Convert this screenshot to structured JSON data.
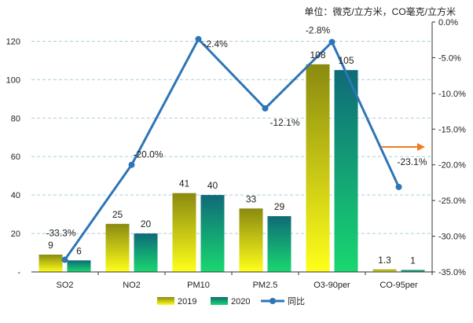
{
  "chart_data": {
    "type": "bar",
    "unit_note": "单位：微克/立方米，CO毫克/立方米",
    "categories": [
      "SO2",
      "NO2",
      "PM10",
      "PM2.5",
      "O3-90per",
      "CO-95per"
    ],
    "series": [
      {
        "name": "2019",
        "kind": "bar",
        "axis": "left",
        "values": [
          9,
          25,
          41,
          33,
          108,
          1.3
        ],
        "labels": [
          "9",
          "25",
          "41",
          "33",
          "108",
          "1.3"
        ]
      },
      {
        "name": "2020",
        "kind": "bar",
        "axis": "left",
        "values": [
          6,
          20,
          40,
          29,
          105,
          1
        ],
        "labels": [
          "6",
          "20",
          "40",
          "29",
          "105",
          "1"
        ]
      },
      {
        "name": "同比",
        "kind": "line",
        "axis": "right",
        "values": [
          -33.3,
          -20.0,
          -2.4,
          -12.1,
          -2.8,
          -23.1
        ],
        "labels": [
          "-33.3%",
          "-20.0%",
          "-2.4%",
          "-12.1%",
          "-2.8%",
          "-23.1%"
        ]
      }
    ],
    "y_left": {
      "min": 0,
      "max": 130,
      "ticks": [
        0,
        20,
        40,
        60,
        80,
        100,
        120
      ],
      "tick_labels": [
        "-",
        "20",
        "40",
        "60",
        "80",
        "100",
        "120"
      ]
    },
    "y_right": {
      "min": -35,
      "max": 0,
      "ticks": [
        0,
        -5,
        -10,
        -15,
        -20,
        -25,
        -30,
        -35
      ],
      "tick_labels": [
        "0.0%",
        "-5.0%",
        "-10.0%",
        "-15.0%",
        "-20.0%",
        "-25.0%",
        "-30.0%",
        "-35.0%"
      ]
    },
    "gridlines": true,
    "legend": [
      "2019",
      "2020",
      "同比"
    ],
    "legend_position": "bottom",
    "annotation": "arrow pointing to right axis",
    "colors": {
      "bar_2019_top": "#8a8a10",
      "bar_2019_bottom": "#ffff1a",
      "bar_2020_top": "#0f6a78",
      "bar_2020_bottom": "#18d870",
      "line": "#2e75b6",
      "arrow": "#f07c22",
      "grid": "#a9cde0",
      "text": "#222222"
    }
  }
}
